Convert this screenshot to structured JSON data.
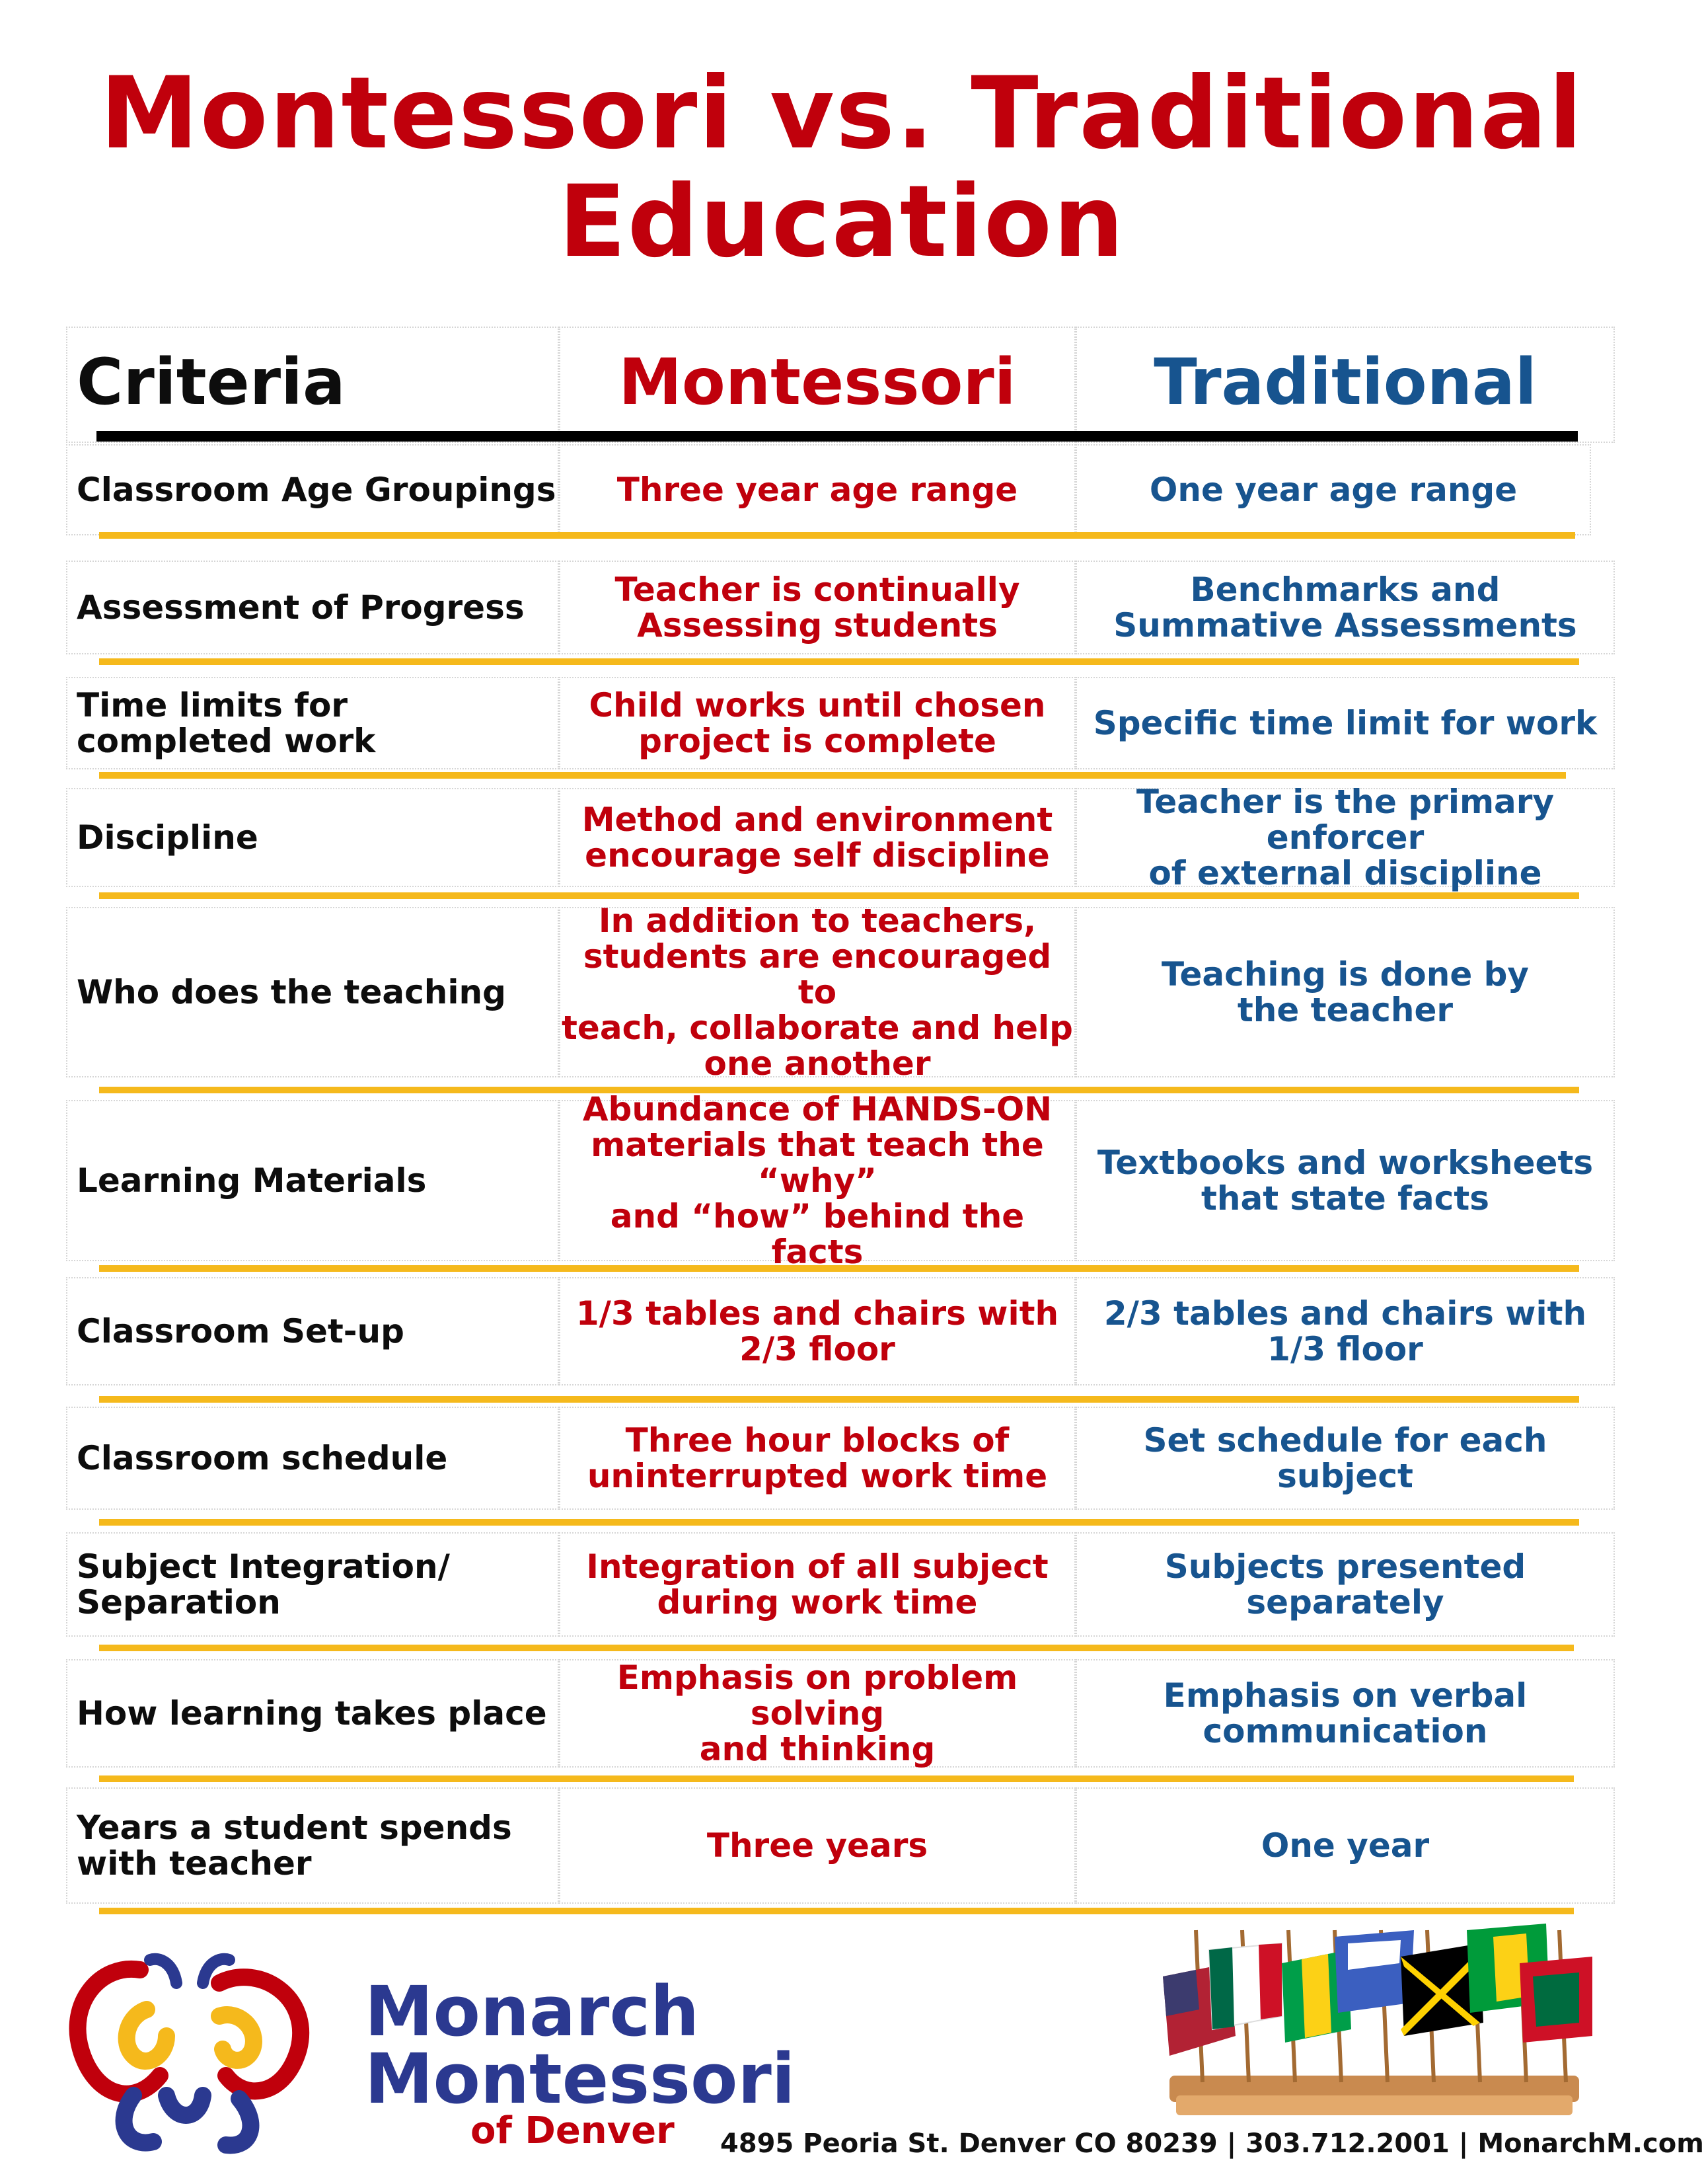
{
  "title": {
    "line1": "Montessori vs. Traditional",
    "line2": "Education"
  },
  "header": {
    "criteria": "Criteria",
    "montessori": "Montessori",
    "traditional": "Traditional"
  },
  "rows": [
    {
      "criteria": "Classroom Age Groupings",
      "montessori": "Three year age range",
      "traditional": "One year age range"
    },
    {
      "criteria": "Assessment of Progress",
      "montessori": "Teacher is continually\nAssessing students",
      "traditional": "Benchmarks and\nSummative Assessments"
    },
    {
      "criteria": "Time limits for\ncompleted work",
      "montessori": "Child works until chosen\nproject is complete",
      "traditional": "Specific time limit for work"
    },
    {
      "criteria": "Discipline",
      "montessori": "Method and environment\nencourage self discipline",
      "traditional": "Teacher is the primary enforcer\nof external discipline"
    },
    {
      "criteria": "Who does the teaching",
      "montessori": "In addition to teachers,\nstudents are encouraged to\nteach, collaborate and help\none another",
      "traditional": "Teaching is done by\nthe teacher"
    },
    {
      "criteria": "Learning Materials",
      "montessori": "Abundance of HANDS-ON\nmaterials that teach the “why”\nand “how” behind the facts",
      "traditional": "Textbooks and worksheets\nthat state facts"
    },
    {
      "criteria": "Classroom Set-up",
      "montessori": "1/3 tables and chairs with\n2/3 floor",
      "traditional": "2/3 tables and chairs with\n1/3 floor"
    },
    {
      "criteria": "Classroom schedule",
      "montessori": "Three hour blocks of\nuninterrupted work time",
      "traditional": "Set schedule for each subject"
    },
    {
      "criteria": "Subject Integration/\nSeparation",
      "montessori": "Integration of all subject\nduring work time",
      "traditional": "Subjects presented separately"
    },
    {
      "criteria": "How learning takes place",
      "montessori": "Emphasis on problem solving\nand thinking",
      "traditional": "Emphasis on verbal\ncommunication"
    },
    {
      "criteria": "Years a student spends\nwith teacher",
      "montessori": "Three years",
      "traditional": "One year"
    }
  ],
  "footer": {
    "brand_line1": "Monarch",
    "brand_line2": "Montessori",
    "brand_line3": "of Denver",
    "address": "4895 Peoria St. Denver CO 80239 | 303.712.2001 | MonarchM.com"
  },
  "colors": {
    "red": "#c0000c",
    "blue": "#17548f",
    "gold": "#f5b91c",
    "brand_navy": "#2b3990"
  },
  "icons": {
    "logo": "butterfly-logo-icon",
    "flags": "world-flags-stand-image"
  }
}
